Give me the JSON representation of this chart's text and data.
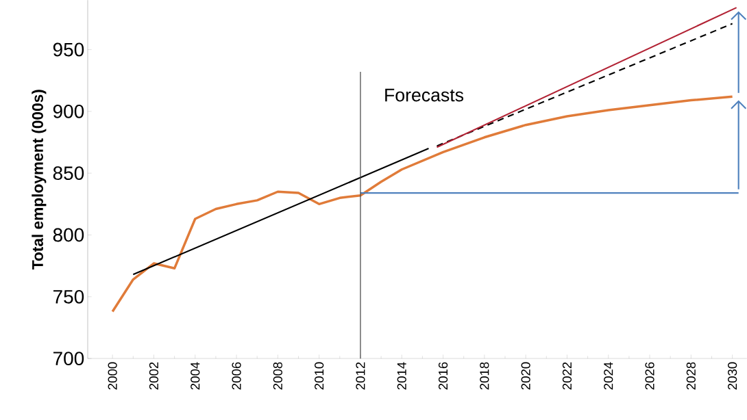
{
  "chart_data": {
    "type": "line",
    "ylabel": "Total employment (000s)",
    "xlim": [
      1998.8,
      2030.7
    ],
    "xticks": [
      2000,
      2002,
      2004,
      2006,
      2008,
      2010,
      2012,
      2014,
      2016,
      2018,
      2020,
      2022,
      2024,
      2026,
      2028,
      2030
    ],
    "ylim": [
      700,
      990
    ],
    "yticks": [
      700,
      750,
      800,
      850,
      900,
      950
    ],
    "grid": false,
    "marker": "none",
    "series": [
      {
        "color": "#e07b39",
        "x": [
          2000,
          2001,
          2002,
          2003,
          2004,
          2005,
          2006,
          2007,
          2008,
          2009,
          2010,
          2011,
          2012,
          2013,
          2014,
          2016,
          2018,
          2020,
          2022,
          2024,
          2026,
          2028,
          2030
        ],
        "values": [
          738,
          764,
          777,
          773,
          813,
          821,
          825,
          828,
          835,
          834,
          825,
          830,
          832,
          843,
          853,
          867,
          879,
          889,
          896,
          901,
          905,
          909,
          912
        ]
      },
      {
        "color": "#000000",
        "x": [
          2001,
          2015.3
        ],
        "values": [
          768,
          870
        ]
      },
      {
        "color": "#000000",
        "line_style": "dashed",
        "x": [
          2015.7,
          2030
        ],
        "values": [
          872,
          971
        ]
      },
      {
        "color": "#b22234",
        "x": [
          2015.7,
          2030.2
        ],
        "values": [
          871,
          984
        ]
      },
      {
        "color": "#4f81bd",
        "x": [
          2012,
          2030.3
        ],
        "values": [
          834,
          834
        ]
      }
    ],
    "ref_lines": [
      {
        "axis": "x",
        "value": 2012,
        "label": "Forecasts",
        "color": "#404040"
      }
    ]
  }
}
